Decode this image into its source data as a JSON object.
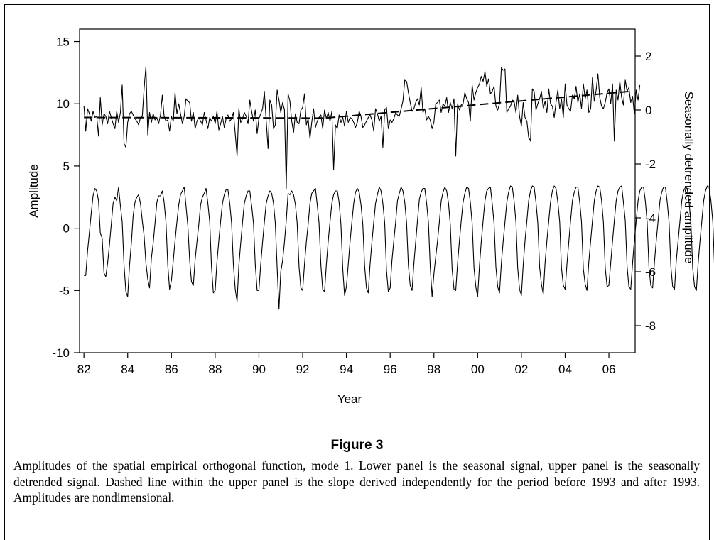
{
  "figure_label": "Figure 3",
  "caption": "Amplitudes of the spatial empirical orthogonal function, mode 1. Lower panel is the seasonal signal, upper panel is the seasonally detrended signal. Dashed line within the upper panel is the slope derived independently for the period before 1993 and after 1993. Amplitudes are nondimensional.",
  "chart_data": {
    "type": "line",
    "xlabel": "Year",
    "ylabel_left": "Amplitude",
    "ylabel_right": "Seasonally detrended amplitude",
    "x_ticks": [
      "82",
      "84",
      "86",
      "88",
      "90",
      "92",
      "94",
      "96",
      "98",
      "00",
      "02",
      "04",
      "06"
    ],
    "x_tick_values": [
      1982,
      1984,
      1986,
      1988,
      1990,
      1992,
      1994,
      1996,
      1998,
      2000,
      2002,
      2004,
      2006
    ],
    "xlim": [
      1981.8,
      2007.2
    ],
    "y_left_ticks": [
      "15",
      "10",
      "5",
      "0",
      "-5",
      "-10"
    ],
    "y_left_tick_values": [
      15,
      10,
      5,
      0,
      -5,
      -10
    ],
    "ylim_left": [
      -10,
      16
    ],
    "y_right_ticks": [
      "2",
      "0",
      "-2",
      "-4",
      "-6",
      "-8"
    ],
    "y_right_tick_values": [
      2,
      0,
      -2,
      -4,
      -6,
      -8
    ],
    "ylim_right": [
      -9,
      3
    ],
    "grid": false,
    "legend": "none",
    "series": [
      {
        "axis": "left",
        "style": "solid",
        "x_start": 1982.0,
        "x_step": 0.08333,
        "values": [
          9.8,
          7.8,
          9.6,
          9.2,
          8.6,
          9.4,
          8.9,
          9.0,
          7.4,
          10.5,
          8.3,
          9.2,
          9.0,
          8.4,
          9.4,
          8.9,
          8.4,
          8.0,
          9.4,
          8.5,
          9.3,
          11.5,
          6.8,
          6.5,
          8.5,
          9.2,
          9.4,
          9.1,
          8.8,
          8.6,
          8.3,
          8.9,
          9.0,
          11.2,
          13.0,
          7.5,
          9.3,
          8.5,
          9.2,
          8.7,
          8.9,
          8.4,
          9.1,
          10.7,
          9.0,
          8.6,
          8.7,
          7.8,
          9.0,
          8.6,
          10.9,
          9.2,
          10.0,
          9.2,
          8.4,
          9.0,
          10.4,
          10.2,
          10.1,
          8.6,
          9.3,
          8.0,
          8.6,
          8.9,
          8.6,
          8.3,
          9.3,
          8.7,
          8.0,
          8.9,
          8.6,
          9.0,
          8.4,
          9.4,
          7.9,
          8.4,
          9.0,
          8.1,
          8.8,
          9.1,
          8.6,
          8.8,
          9.3,
          7.6,
          5.8,
          9.6,
          8.5,
          8.8,
          9.3,
          9.0,
          8.4,
          10.3,
          9.4,
          8.6,
          9.5,
          7.6,
          8.8,
          9.2,
          9.6,
          11.0,
          8.6,
          6.4,
          10.3,
          9.9,
          8.0,
          8.3,
          11.1,
          10.3,
          9.3,
          10.1,
          9.5,
          3.2,
          10.8,
          10.2,
          8.6,
          7.7,
          9.2,
          8.5,
          8.4,
          9.5,
          9.7,
          10.8,
          8.3,
          8.8,
          7.2,
          8.5,
          9.6,
          8.1,
          8.6,
          8.9,
          9.1,
          8.0,
          9.5,
          8.8,
          9.3,
          8.6,
          9.4,
          4.7,
          8.3,
          8.0,
          9.1,
          8.5,
          8.9,
          8.2,
          9.4,
          8.5,
          8.9,
          8.8,
          8.5,
          8.1,
          8.5,
          9.4,
          9.0,
          8.1,
          8.3,
          8.6,
          8.9,
          9.1,
          8.7,
          7.8,
          9.6,
          9.2,
          8.6,
          9.0,
          6.5,
          9.5,
          9.7,
          8.0,
          8.7,
          8.5,
          8.8,
          9.3,
          9.1,
          9.0,
          9.6,
          10.2,
          11.9,
          11.8,
          10.9,
          10.1,
          9.4,
          9.6,
          10.1,
          10.4,
          9.9,
          11.3,
          9.3,
          9.6,
          8.7,
          9.0,
          8.7,
          8.0,
          8.5,
          10.0,
          10.1,
          10.3,
          9.3,
          10.0,
          9.8,
          10.5,
          9.3,
          10.1,
          9.6,
          10.4,
          5.8,
          10.0,
          9.5,
          9.9,
          10.0,
          10.9,
          10.4,
          10.1,
          8.6,
          11.5,
          10.3,
          10.9,
          11.3,
          11.6,
          12.2,
          11.8,
          12.6,
          11.4,
          12.0,
          10.8,
          11.0,
          11.4,
          9.8,
          9.5,
          10.0,
          12.9,
          12.7,
          12.8,
          9.3,
          9.6,
          9.8,
          10.3,
          10.2,
          9.3,
          10.7,
          9.0,
          8.2,
          10.1,
          8.9,
          8.6,
          7.3,
          7.0,
          11.2,
          11.0,
          9.5,
          10.0,
          10.4,
          11.0,
          9.6,
          10.2,
          9.3,
          11.2,
          10.0,
          9.8,
          8.9,
          10.1,
          11.1,
          9.6,
          10.4,
          8.9,
          11.6,
          9.9,
          9.6,
          9.4,
          10.7,
          10.4,
          11.4,
          10.1,
          10.8,
          9.6,
          11.6,
          10.4,
          11.1,
          9.3,
          9.6,
          12.1,
          10.2,
          11.1,
          12.4,
          10.5,
          9.8,
          9.6,
          10.1,
          10.9,
          11.2,
          10.0,
          11.6,
          7.0,
          11.1,
          10.3,
          11.8,
          10.5,
          9.9,
          11.9,
          11.0,
          11.3,
          10.1,
          10.6,
          9.2,
          11.1,
          10.3,
          11.5
        ]
      },
      {
        "axis": "left",
        "style": "solid",
        "x_start": 1982.0,
        "x_step": 0.08333,
        "values": [
          -3.8,
          -3.8,
          -1.8,
          -0.3,
          1.2,
          2.6,
          3.2,
          3.0,
          2.2,
          -0.4,
          -0.8,
          -3.6,
          -3.9,
          -2.8,
          -1.3,
          0.3,
          2.0,
          2.5,
          2.2,
          3.3,
          1.8,
          0.5,
          -3.0,
          -5.1,
          -5.5,
          -3.0,
          -1.2,
          1.0,
          2.1,
          2.5,
          2.7,
          2.0,
          0.6,
          -0.6,
          -2.8,
          -4.1,
          -4.8,
          -2.4,
          -1.2,
          0.4,
          2.1,
          2.6,
          2.6,
          3.0,
          2.1,
          0.5,
          -3.0,
          -4.9,
          -4.2,
          -2.6,
          -1.0,
          0.5,
          1.9,
          2.7,
          3.0,
          3.3,
          1.8,
          0.2,
          -2.6,
          -4.3,
          -4.6,
          -2.5,
          -1.1,
          0.3,
          1.9,
          2.5,
          2.8,
          3.2,
          2.0,
          0.5,
          -3.1,
          -5.2,
          -5.0,
          -2.7,
          -1.0,
          0.6,
          2.0,
          2.7,
          3.1,
          3.1,
          2.0,
          0.4,
          -2.9,
          -4.9,
          -5.9,
          -3.0,
          -1.2,
          0.5,
          2.0,
          2.6,
          3.0,
          3.0,
          1.8,
          0.4,
          -2.9,
          -5.0,
          -5.0,
          -2.9,
          -1.1,
          0.5,
          2.0,
          2.6,
          3.0,
          2.8,
          2.0,
          0.4,
          -3.2,
          -6.5,
          -3.5,
          -2.6,
          -1.1,
          0.6,
          2.8,
          2.7,
          3.0,
          2.7,
          1.9,
          0.4,
          -3.1,
          -4.8,
          -5.0,
          -2.9,
          -1.1,
          0.3,
          2.0,
          2.8,
          3.0,
          3.2,
          1.9,
          0.4,
          -3.0,
          -4.9,
          -5.1,
          -2.9,
          -1.1,
          0.5,
          2.0,
          2.7,
          3.0,
          3.0,
          2.1,
          0.3,
          -3.3,
          -5.4,
          -4.7,
          -2.9,
          -1.1,
          0.5,
          2.0,
          2.9,
          3.2,
          2.9,
          1.9,
          0.3,
          -3.0,
          -4.8,
          -5.2,
          -2.9,
          -1.1,
          0.5,
          2.0,
          2.7,
          3.3,
          3.0,
          2.0,
          0.4,
          -3.4,
          -5.1,
          -4.8,
          -2.6,
          -1.0,
          0.5,
          2.2,
          2.8,
          3.3,
          3.0,
          2.1,
          0.4,
          -3.0,
          -4.6,
          -5.0,
          -2.9,
          -1.1,
          0.6,
          2.3,
          2.9,
          3.2,
          3.2,
          2.0,
          0.5,
          -3.1,
          -5.5,
          -3.7,
          -2.3,
          -1.0,
          0.5,
          2.2,
          2.9,
          3.3,
          3.0,
          2.0,
          0.3,
          -3.3,
          -4.9,
          -5.0,
          -2.8,
          -1.0,
          0.6,
          2.1,
          2.8,
          3.3,
          3.2,
          2.1,
          0.4,
          -3.2,
          -4.7,
          -5.5,
          -3.0,
          -1.1,
          0.6,
          2.2,
          3.0,
          3.2,
          3.3,
          2.0,
          0.4,
          -3.1,
          -4.7,
          -5.2,
          -2.8,
          -1.1,
          0.5,
          2.1,
          2.9,
          3.4,
          3.3,
          2.2,
          0.5,
          -3.2,
          -4.9,
          -5.4,
          -3.0,
          -1.0,
          0.6,
          2.2,
          3.0,
          3.4,
          3.3,
          2.1,
          0.4,
          -3.1,
          -4.5,
          -5.3,
          -2.8,
          -1.0,
          0.6,
          2.1,
          3.0,
          3.4,
          3.2,
          2.1,
          0.5,
          -3.2,
          -4.6,
          -4.9,
          -2.9,
          -1.1,
          0.6,
          2.2,
          2.9,
          3.3,
          3.3,
          2.1,
          0.5,
          -3.3,
          -4.5,
          -5.0,
          -2.7,
          -1.0,
          0.6,
          2.2,
          3.0,
          3.4,
          3.3,
          2.2,
          0.5,
          -3.2,
          -4.7,
          -4.6,
          -2.8,
          -1.0,
          0.6,
          2.2,
          3.0,
          3.3,
          3.4,
          2.1,
          0.6,
          -3.1,
          -4.7,
          -4.9,
          -2.8,
          -1.0,
          0.6,
          2.2,
          3.0,
          3.3,
          3.3,
          2.2,
          0.5,
          -3.2,
          -4.6,
          -4.8,
          -2.7,
          -1.0,
          0.6,
          2.2,
          2.9,
          3.3,
          3.3,
          2.1,
          0.5,
          -3.1,
          -4.7,
          -4.9,
          -2.6,
          -1.0,
          0.6,
          2.2,
          3.0,
          3.3,
          3.2,
          2.1,
          0.4,
          -3.2,
          -4.7,
          -5.0,
          -2.8,
          -1.0,
          0.6,
          2.2,
          3.0,
          3.4,
          3.3,
          2.2,
          0.5,
          -3.2,
          -4.6,
          -4.8,
          -2.6
        ]
      },
      {
        "axis": "left",
        "style": "dashed",
        "x": [
          1982.0,
          1993.0,
          2007.0
        ],
        "values": [
          8.9,
          8.85,
          11.0
        ]
      }
    ]
  }
}
